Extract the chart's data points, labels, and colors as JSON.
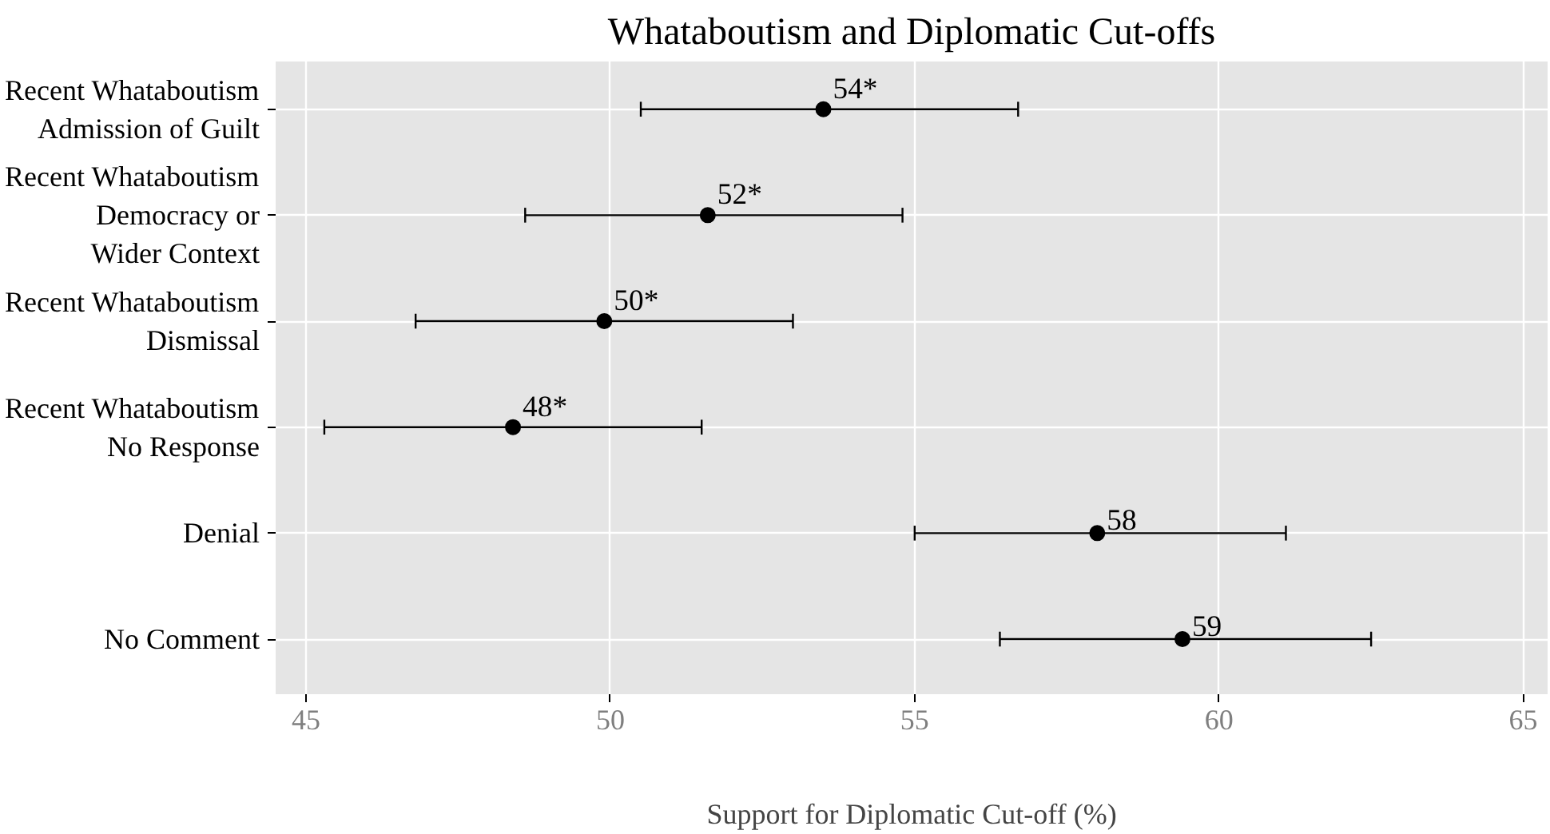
{
  "chart_data": {
    "type": "scatter",
    "orientation": "horizontal",
    "title": "Whataboutism and Diplomatic Cut-offs",
    "xlabel": "Support for Diplomatic Cut-off (%)",
    "categories": [
      "Recent Whataboutism\nAdmission of Guilt",
      "Recent Whataboutism\nDemocracy or\nWider Context",
      "Recent Whataboutism\nDismissal",
      "Recent Whataboutism\nNo Response",
      "Denial",
      "No Comment"
    ],
    "values": [
      53.5,
      51.6,
      49.9,
      48.4,
      58.0,
      59.4
    ],
    "errors": [
      [
        50.5,
        56.7
      ],
      [
        48.6,
        54.8
      ],
      [
        46.8,
        53.0
      ],
      [
        45.3,
        51.5
      ],
      [
        55.0,
        61.1
      ],
      [
        56.4,
        62.5
      ]
    ],
    "value_labels": [
      "54*",
      "52*",
      "50*",
      "48*",
      "58",
      "59"
    ],
    "color": "#000000",
    "marker": "circle",
    "grid": true,
    "xlim": [
      44.5,
      65.4
    ],
    "xticks": [
      45,
      50,
      55,
      60,
      65
    ]
  }
}
